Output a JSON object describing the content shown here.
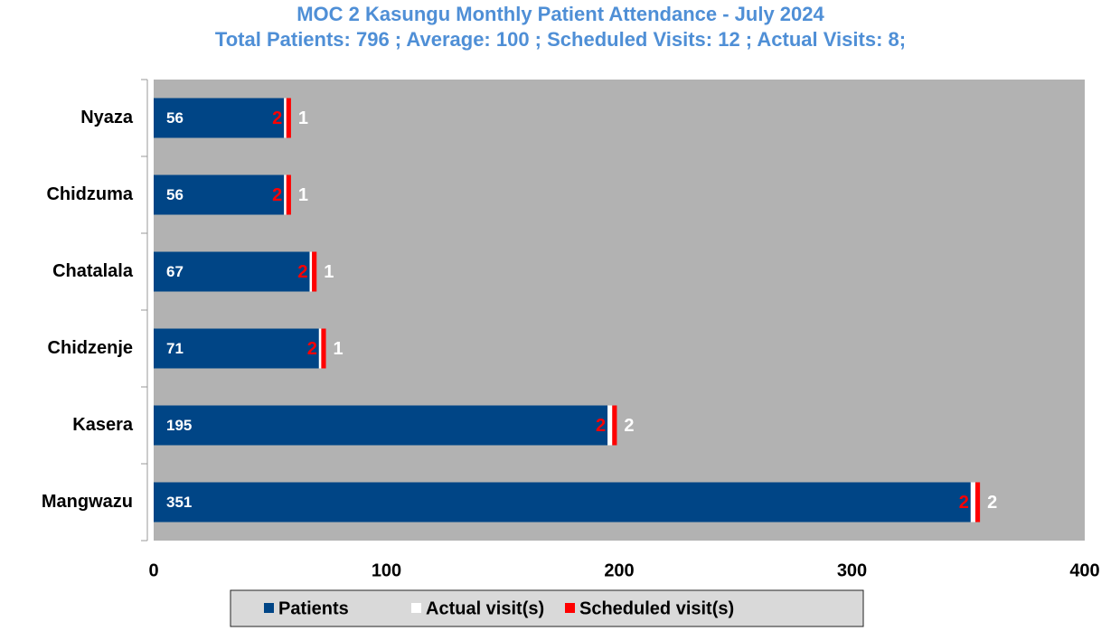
{
  "chart_data": {
    "type": "stacked-barh",
    "title": "MOC 2 Kasungu Monthly Patient Attendance - July 2024",
    "subtitle": "Total Patients: 796 ; Average: 100 ; Scheduled Visits: 12 ; Actual Visits: 8;",
    "categories": [
      "Nyaza",
      "Chidzuma",
      "Chatalala",
      "Chidzenje",
      "Kasera",
      "Mangwazu"
    ],
    "series": [
      {
        "name": "Patients",
        "color": "#004586",
        "values": [
          56,
          56,
          67,
          71,
          195,
          351
        ]
      },
      {
        "name": "Actual visit(s)",
        "color": "#ffffff",
        "values": [
          1,
          1,
          1,
          1,
          2,
          2
        ]
      },
      {
        "name": "Scheduled visit(s)",
        "color": "#ff0000",
        "values": [
          2,
          2,
          2,
          2,
          2,
          2
        ]
      }
    ],
    "xlim": [
      0,
      400
    ],
    "xticks": [
      0,
      100,
      200,
      300,
      400
    ],
    "grid": false,
    "legend": "bottom"
  }
}
